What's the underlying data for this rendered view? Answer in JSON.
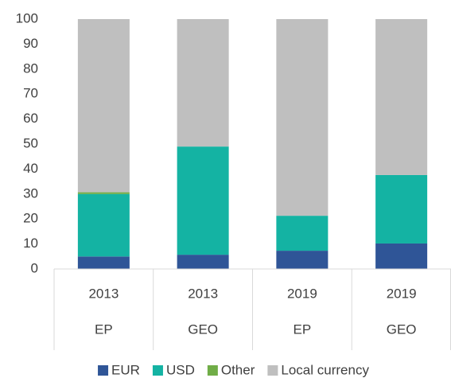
{
  "chart_data": {
    "type": "stacked_bar",
    "categories": [
      "2013",
      "2013",
      "2019",
      "2019"
    ],
    "subcategories": [
      "EP",
      "GEO",
      "EP",
      "GEO"
    ],
    "series": [
      {
        "name": "EUR",
        "color": "#2f5597",
        "values": [
          5,
          5.7,
          7.3,
          10.2
        ]
      },
      {
        "name": "USD",
        "color": "#14b3a3",
        "values": [
          25,
          43.3,
          14,
          27.4
        ]
      },
      {
        "name": "Other",
        "color": "#70ad47",
        "values": [
          0.7,
          0,
          0,
          0
        ]
      },
      {
        "name": "Local currency",
        "color": "#bfbfbf",
        "values": [
          69.3,
          51,
          78.7,
          62.4
        ]
      }
    ],
    "ylim": [
      0,
      100
    ],
    "yticks": [
      0,
      10,
      20,
      30,
      40,
      50,
      60,
      70,
      80,
      90,
      100
    ],
    "grid": false,
    "legend": "bottom"
  }
}
